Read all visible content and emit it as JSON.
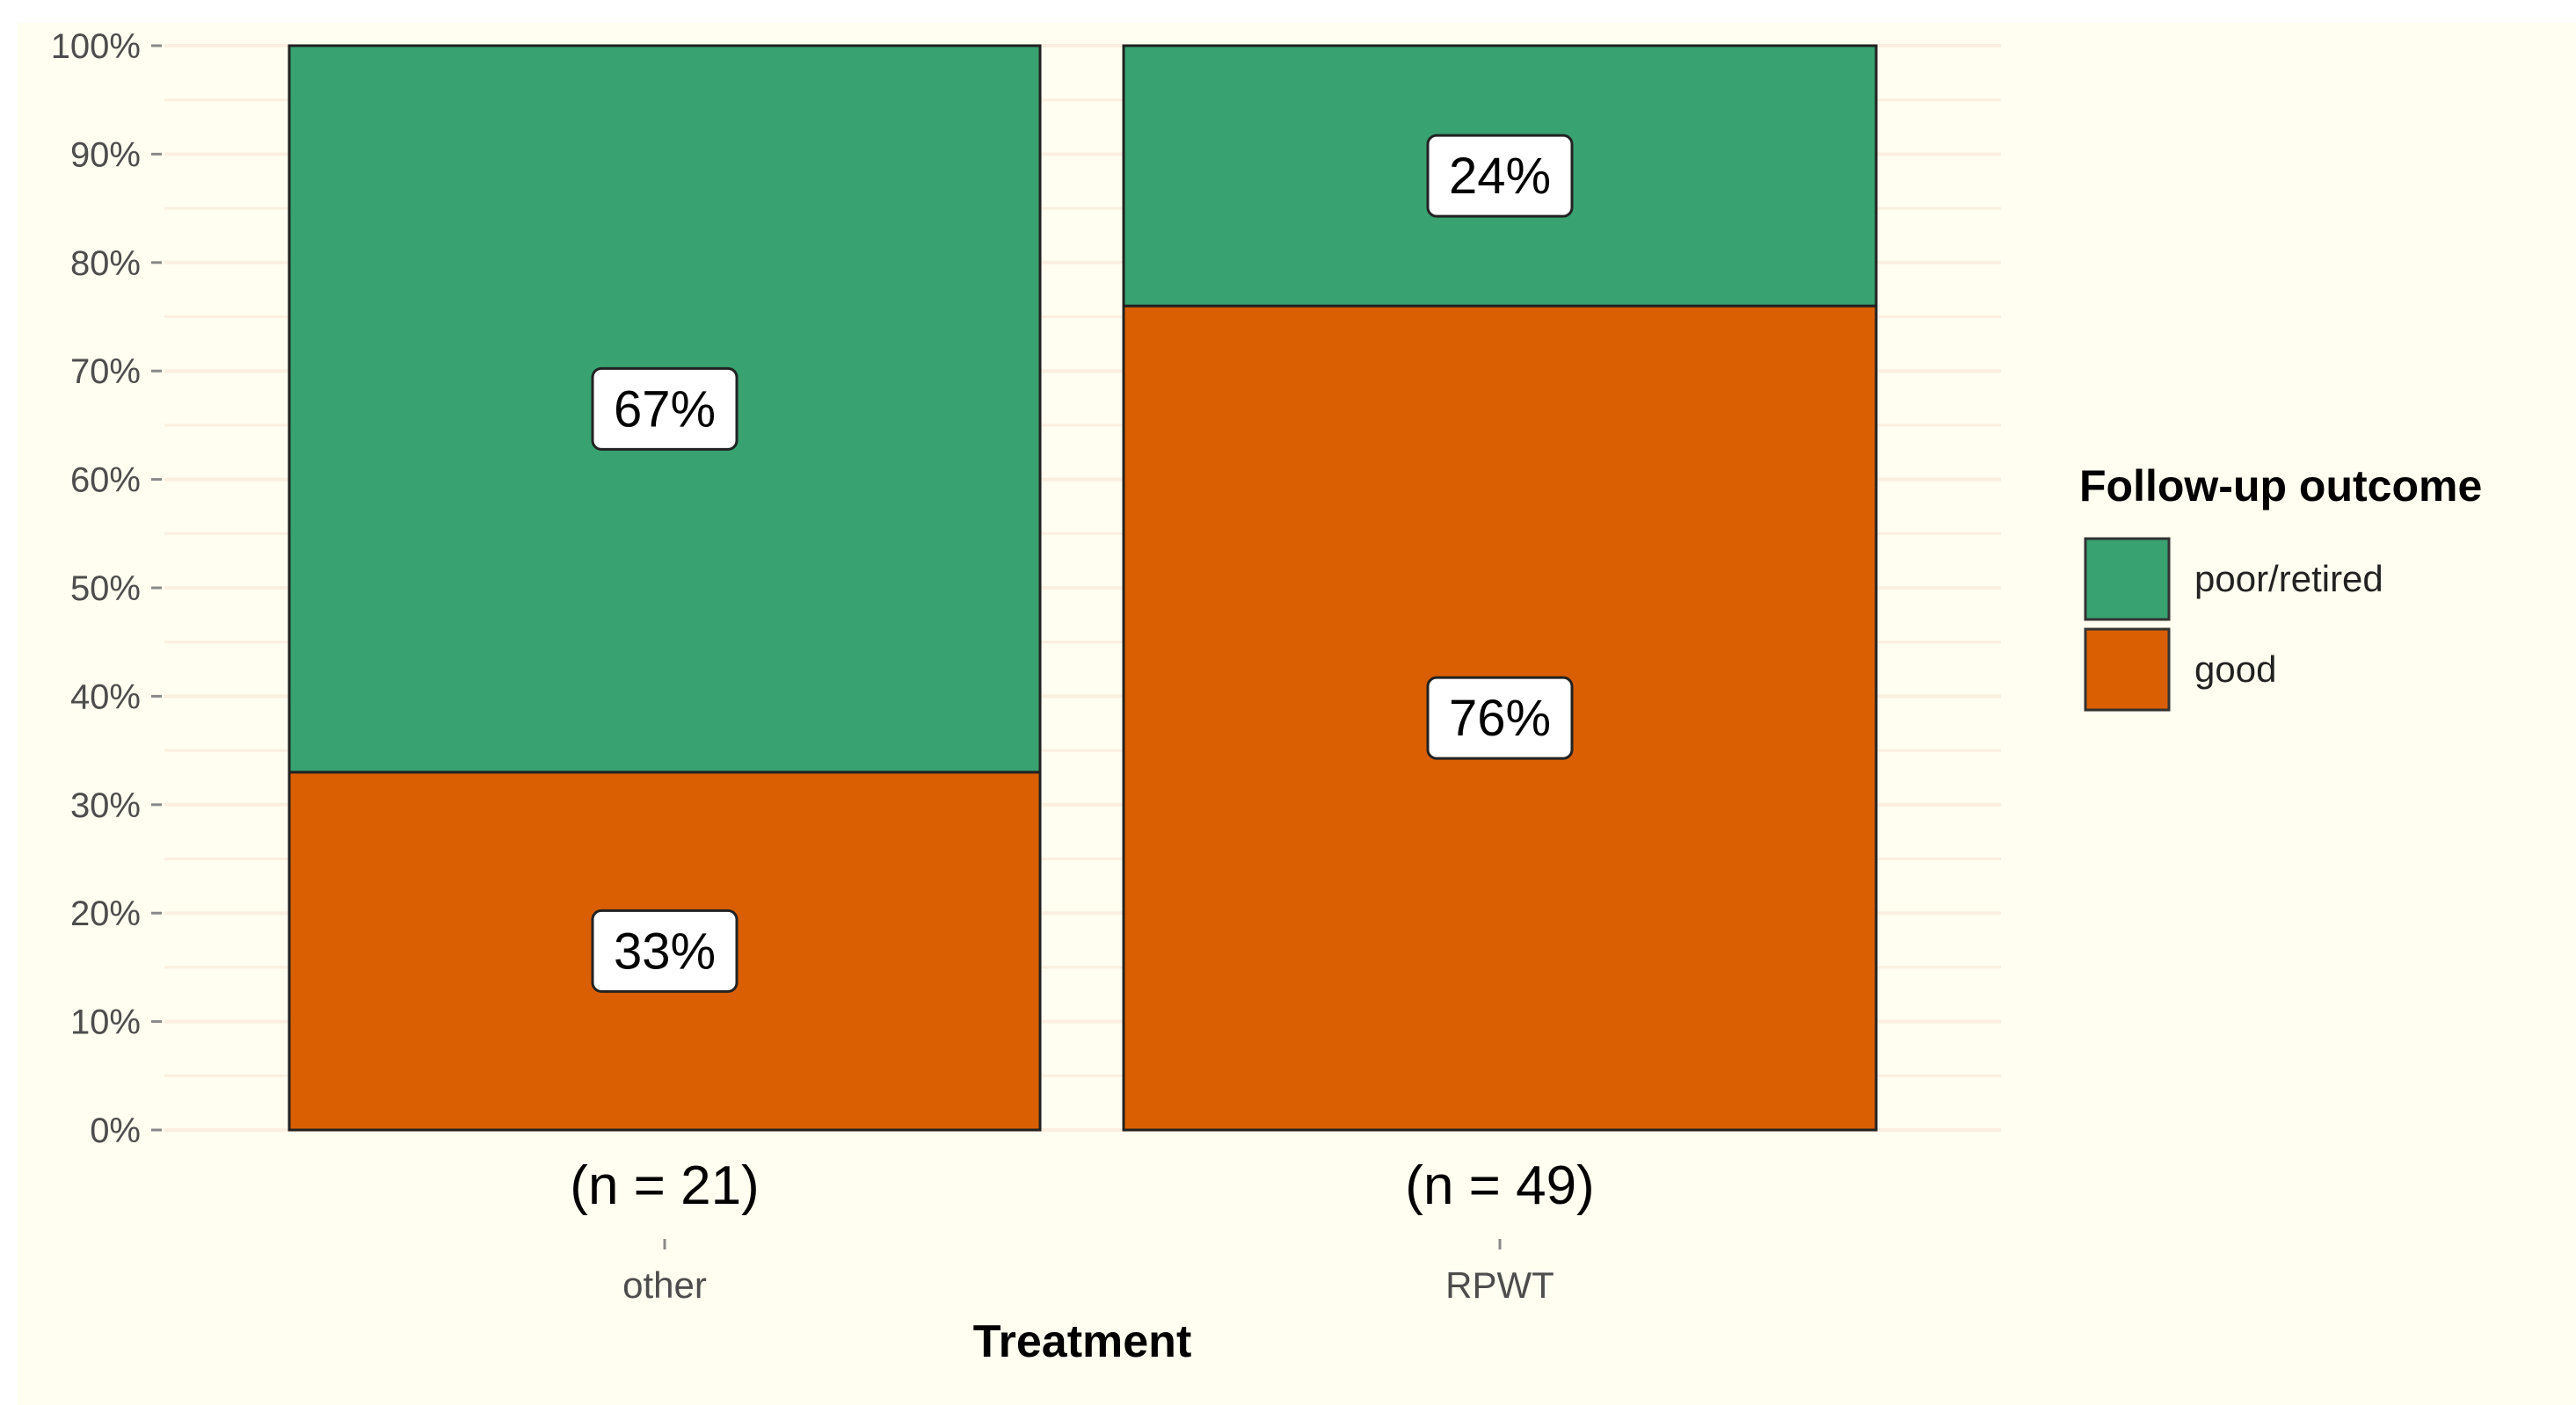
{
  "chart_data": {
    "type": "bar",
    "stacked": true,
    "normalized": true,
    "xlabel": "Treatment",
    "ylabel": "",
    "categories": [
      "other",
      "RPWT"
    ],
    "category_annotations": [
      "(n = 21)",
      "(n = 49)"
    ],
    "ylim": [
      0,
      100
    ],
    "yticks": [
      "0%",
      "10%",
      "20%",
      "30%",
      "40%",
      "50%",
      "60%",
      "70%",
      "80%",
      "90%",
      "100%"
    ],
    "grid": true,
    "legend": {
      "title": "Follow-up outcome",
      "position": "right"
    },
    "series": [
      {
        "name": "good",
        "values": [
          33,
          76
        ],
        "labels": [
          "33%",
          "76%"
        ],
        "color": "#d95f02"
      },
      {
        "name": "poor/retired",
        "values": [
          67,
          24
        ],
        "labels": [
          "67%",
          "24%"
        ],
        "color": "#38a270"
      }
    ],
    "legend_order": [
      "poor/retired",
      "good"
    ],
    "background": "#fffef0"
  }
}
